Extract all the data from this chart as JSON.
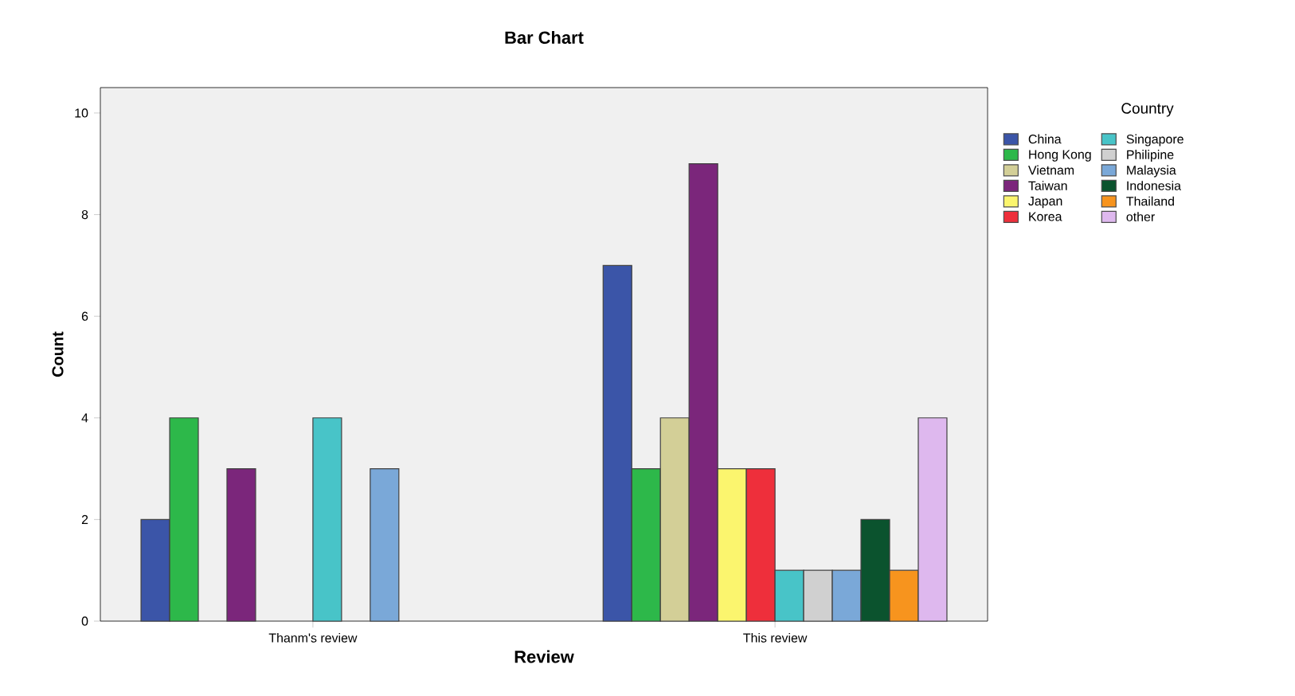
{
  "chart_data": {
    "type": "bar",
    "title": "Bar Chart",
    "xlabel": "Review",
    "ylabel": "Count",
    "legend_title": "Country",
    "categories": [
      "Thanm's review",
      "This review"
    ],
    "series": [
      {
        "name": "China",
        "color": "#3b55a8",
        "values": [
          2,
          7
        ]
      },
      {
        "name": "Hong Kong",
        "color": "#2db84a",
        "values": [
          4,
          3
        ]
      },
      {
        "name": "Vietnam",
        "color": "#d3cf97",
        "values": [
          null,
          4
        ]
      },
      {
        "name": "Taiwan",
        "color": "#7b267b",
        "values": [
          3,
          9
        ]
      },
      {
        "name": "Japan",
        "color": "#fbf56e",
        "values": [
          null,
          3
        ]
      },
      {
        "name": "Korea",
        "color": "#ee2f3b",
        "values": [
          null,
          3
        ]
      },
      {
        "name": "Singapore",
        "color": "#48c4c8",
        "values": [
          4,
          1
        ]
      },
      {
        "name": "Philipine",
        "color": "#d0d0d0",
        "values": [
          null,
          1
        ]
      },
      {
        "name": "Malaysia",
        "color": "#7aa8d8",
        "values": [
          3,
          1
        ]
      },
      {
        "name": "Indonesia",
        "color": "#0b532e",
        "values": [
          null,
          2
        ]
      },
      {
        "name": "Thailand",
        "color": "#f7941e",
        "values": [
          null,
          1
        ]
      },
      {
        "name": "other",
        "color": "#deb8ee",
        "values": [
          null,
          4
        ]
      }
    ],
    "ylim": [
      0,
      10.5
    ],
    "yticks": [
      0,
      2,
      4,
      6,
      8,
      10
    ],
    "grid": false,
    "legend": "right"
  }
}
